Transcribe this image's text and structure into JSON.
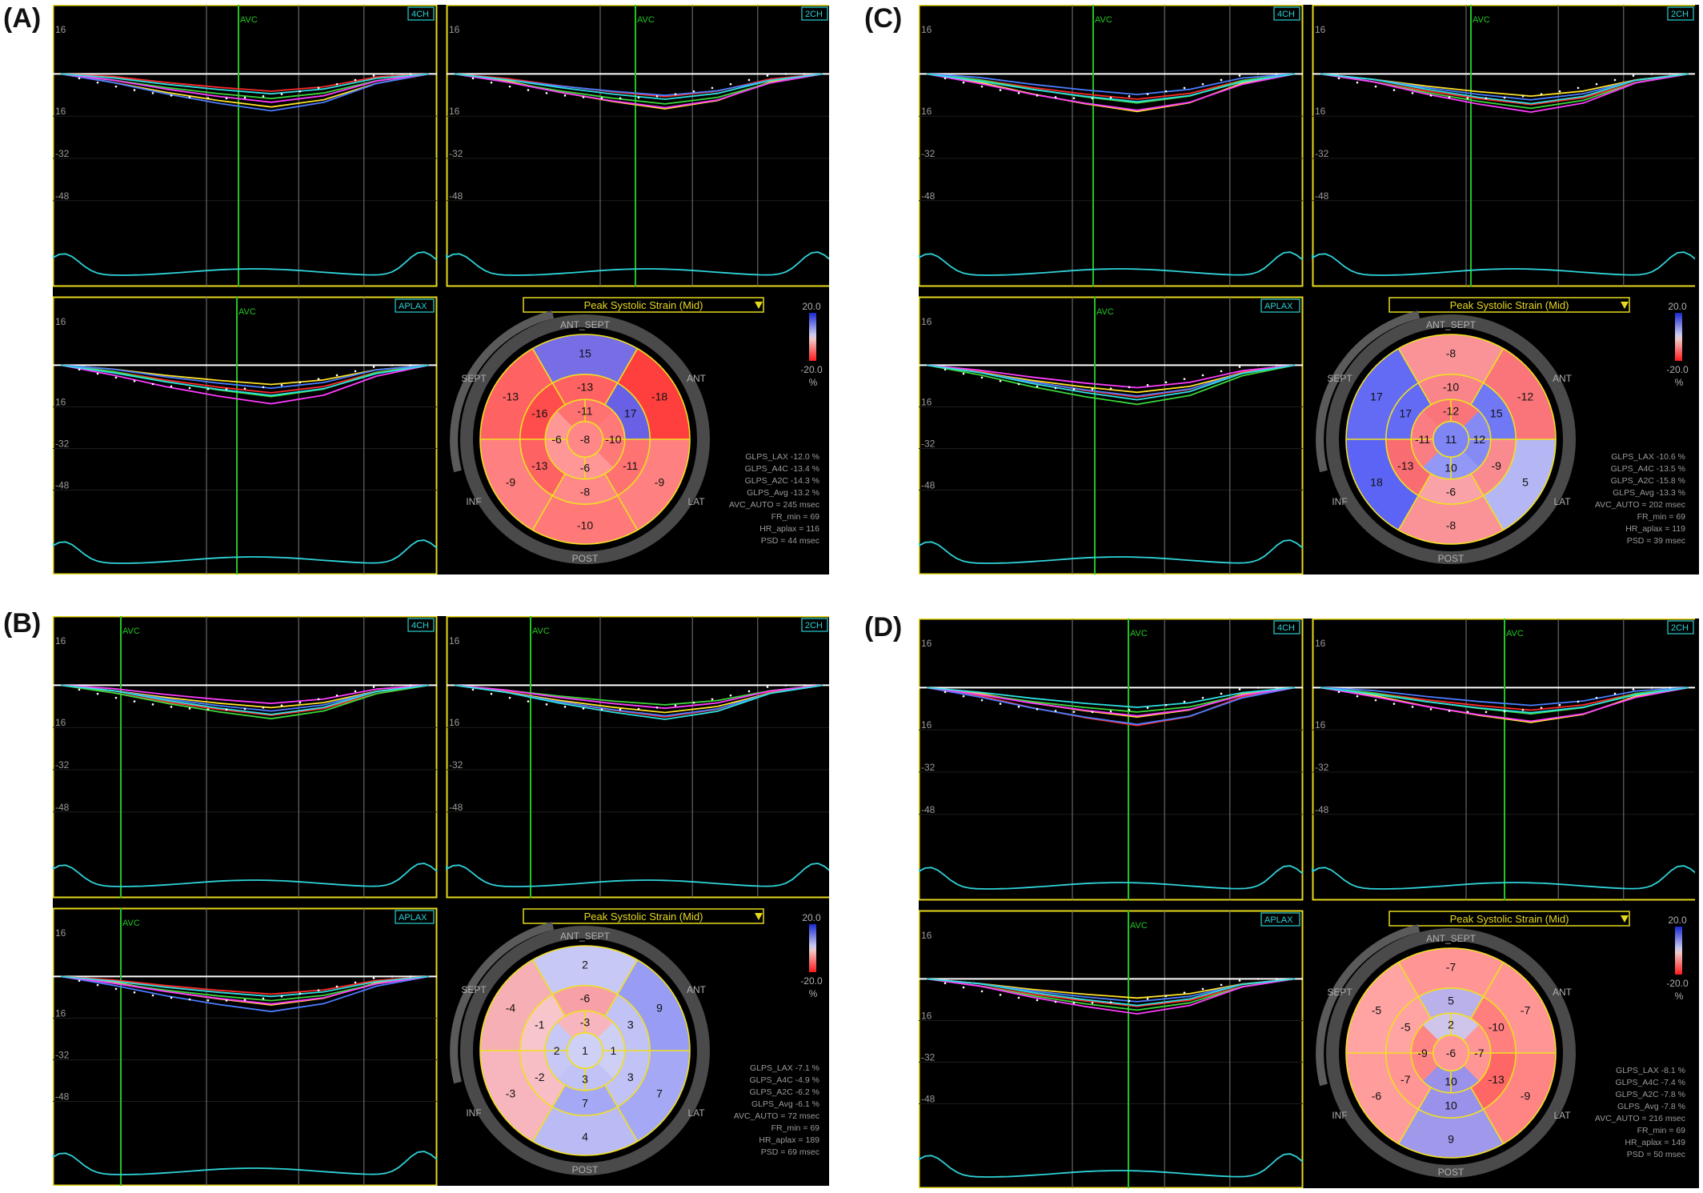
{
  "colors": {
    "frame": "#e6d91c",
    "grid": "#7a7a7a",
    "baseline": "#ffffff",
    "avc_line": "#22c524",
    "tick_label": "#9a9a9a",
    "tag_border": "#2ad0d6",
    "ecg": "#2fd3d8",
    "segment_red": "#e5212a",
    "segment_blue": "#3a45d6"
  },
  "trace_colors": [
    "#ff2a2a",
    "#ffe22a",
    "#3cd83c",
    "#4a7dff",
    "#ff3dff",
    "#30e0e0"
  ],
  "panels": [
    {
      "label": "(A)",
      "views": [
        {
          "tag": "4CH",
          "marker": "AVC",
          "y_ticks": [
            "16",
            "",
            "16",
            "-32",
            "-48"
          ]
        },
        {
          "tag": "2CH",
          "marker": "AVC",
          "y_ticks": [
            "16",
            "",
            "16",
            "-32",
            "-48"
          ]
        },
        {
          "tag": "APLAX",
          "marker": "AVC",
          "y_ticks": [
            "16",
            "",
            "16",
            "-32",
            "-48"
          ]
        }
      ],
      "bullseye": {
        "title": "Peak Systolic Strain (Mid)",
        "labels": {
          "top": "ANT_SEPT",
          "top_left": "SEPT",
          "top_right": "ANT",
          "bottom_left": "INF",
          "bottom_right": "LAT",
          "bottom": "POST"
        },
        "scale": {
          "max": "20.0",
          "min": "-20.0",
          "unit": "%"
        },
        "values": {
          "basal": [
            "15",
            "-18",
            "-9",
            "-10",
            "-9",
            "-13"
          ],
          "mid": [
            "-13",
            "17",
            "-11",
            "-8",
            "-13",
            "-16"
          ],
          "apical": [
            "-11",
            "-10",
            "-6",
            "-6"
          ],
          "apex": "-8"
        },
        "metrics": [
          "GLPS_LAX  -12.0 %",
          "GLPS_A4C  -13.4 %",
          "GLPS_A2C  -14.3 %",
          "GLPS_Avg  -13.2 %",
          "AVC_AUTO = 245 msec",
          "FR_min = 69",
          "HR_aplax = 116",
          "PSD = 44 msec"
        ]
      }
    },
    {
      "label": "(B)",
      "views": [
        {
          "tag": "4CH",
          "marker": "AVC",
          "y_ticks": [
            "16",
            "",
            "16",
            "-32",
            "-48"
          ]
        },
        {
          "tag": "2CH",
          "marker": "AVC",
          "y_ticks": [
            "16",
            "",
            "16",
            "-32",
            "-48"
          ]
        },
        {
          "tag": "APLAX",
          "marker": "AVC",
          "y_ticks": [
            "16",
            "",
            "16",
            "-32",
            "-48"
          ]
        }
      ],
      "bullseye": {
        "title": "Peak Systolic Strain (Mid)",
        "labels": {
          "top": "ANT_SEPT",
          "top_left": "SEPT",
          "top_right": "ANT",
          "bottom_left": "INF",
          "bottom_right": "LAT",
          "bottom": "POST"
        },
        "scale": {
          "max": "20.0",
          "min": "-20.0",
          "unit": "%"
        },
        "values": {
          "basal": [
            "2",
            "9",
            "7",
            "4",
            "-3",
            "-4"
          ],
          "mid": [
            "-6",
            "3",
            "3",
            "7",
            "-2",
            "-1"
          ],
          "apical": [
            "-3",
            "1",
            "3",
            "2"
          ],
          "apex": "1"
        },
        "metrics": [
          "GLPS_LAX  -7.1 %",
          "GLPS_A4C  -4.9 %",
          "GLPS_A2C  -6.2 %",
          "GLPS_Avg  -6.1 %",
          "AVC_AUTO = 72 msec",
          "FR_min = 69",
          "HR_aplax = 189",
          "PSD = 69 msec"
        ]
      }
    },
    {
      "label": "(C)",
      "views": [
        {
          "tag": "4CH",
          "marker": "AVC",
          "y_ticks": [
            "16",
            "",
            "16",
            "-32",
            "-48"
          ]
        },
        {
          "tag": "2CH",
          "marker": "AVC",
          "y_ticks": [
            "16",
            "",
            "16",
            "-32",
            "-48"
          ]
        },
        {
          "tag": "APLAX",
          "marker": "AVC",
          "y_ticks": [
            "16",
            "",
            "16",
            "-32",
            "-48"
          ]
        }
      ],
      "bullseye": {
        "title": "Peak Systolic Strain (Mid)",
        "labels": {
          "top": "ANT_SEPT",
          "top_left": "SEPT",
          "top_right": "ANT",
          "bottom_left": "INF",
          "bottom_right": "LAT",
          "bottom": "POST"
        },
        "scale": {
          "max": "20.0",
          "min": "-20.0",
          "unit": "%"
        },
        "values": {
          "basal": [
            "-8",
            "-12",
            "5",
            "-8",
            "18",
            "17"
          ],
          "mid": [
            "-10",
            "15",
            "-9",
            "-6",
            "-13",
            "17"
          ],
          "apical": [
            "-12",
            "12",
            "10",
            "-11"
          ],
          "apex": "11"
        },
        "metrics": [
          "GLPS_LAX  -10.6 %",
          "GLPS_A4C  -13.5 %",
          "GLPS_A2C  -15.8 %",
          "GLPS_Avg  -13.3 %",
          "AVC_AUTO = 202 msec",
          "FR_min = 69",
          "HR_aplax = 119",
          "PSD = 39 msec"
        ]
      }
    },
    {
      "label": "(D)",
      "views": [
        {
          "tag": "4CH",
          "marker": "AVC",
          "y_ticks": [
            "16",
            "",
            "16",
            "-32",
            "-48"
          ]
        },
        {
          "tag": "2CH",
          "marker": "AVC",
          "y_ticks": [
            "16",
            "",
            "16",
            "-32",
            "-48"
          ]
        },
        {
          "tag": "APLAX",
          "marker": "AVC",
          "y_ticks": [
            "16",
            "",
            "16",
            "-32",
            "-48"
          ]
        }
      ],
      "bullseye": {
        "title": "Peak Systolic Strain (Mid)",
        "labels": {
          "top": "ANT_SEPT",
          "top_left": "SEPT",
          "top_right": "ANT",
          "bottom_left": "INF",
          "bottom_right": "LAT",
          "bottom": "POST"
        },
        "scale": {
          "max": "20.0",
          "min": "-20.0",
          "unit": "%"
        },
        "values": {
          "basal": [
            "-7",
            "-7",
            "-9",
            "9",
            "-6",
            "-5"
          ],
          "mid": [
            "5",
            "-10",
            "-13",
            "10",
            "-7",
            "-5"
          ],
          "apical": [
            "2",
            "-7",
            "10",
            "-9"
          ],
          "apex": "-6"
        },
        "metrics": [
          "GLPS_LAX  -8.1 %",
          "GLPS_A4C  -7.4 %",
          "GLPS_A2C  -7.8 %",
          "GLPS_Avg  -7.8 %",
          "AVC_AUTO = 216 msec",
          "FR_min = 69",
          "HR_aplax = 149",
          "PSD = 50 msec"
        ]
      }
    }
  ],
  "chart_data": {
    "type": "bullseye",
    "metric": "Peak Systolic Strain (Mid)",
    "unit": "%",
    "color_scale": [
      -20.0,
      20.0
    ],
    "strain_curve_axis": {
      "ticks": [
        "16",
        "",
        "16",
        "-32",
        "-48"
      ]
    },
    "panels": [
      {
        "label": "(A)",
        "GLPS_LAX": -12.0,
        "GLPS_A4C": -13.4,
        "GLPS_A2C": -14.3,
        "GLPS_Avg": -13.2,
        "AVC_AUTO": 245,
        "FR_min": 69,
        "HR_aplax": 116,
        "PSD": 44
      },
      {
        "label": "(B)",
        "GLPS_LAX": -7.1,
        "GLPS_A4C": -4.9,
        "GLPS_A2C": -6.2,
        "GLPS_Avg": -6.1,
        "AVC_AUTO": 72,
        "FR_min": 69,
        "HR_aplax": 189,
        "PSD": 69
      },
      {
        "label": "(C)",
        "GLPS_LAX": -10.6,
        "GLPS_A4C": -13.5,
        "GLPS_A2C": -15.8,
        "GLPS_Avg": -13.3,
        "AVC_AUTO": 202,
        "FR_min": 69,
        "HR_aplax": 119,
        "PSD": 39
      },
      {
        "label": "(D)",
        "GLPS_LAX": -8.1,
        "GLPS_A4C": -7.4,
        "GLPS_A2C": -7.8,
        "GLPS_Avg": -7.8,
        "AVC_AUTO": 216,
        "FR_min": 69,
        "HR_aplax": 149,
        "PSD": 50
      }
    ]
  }
}
